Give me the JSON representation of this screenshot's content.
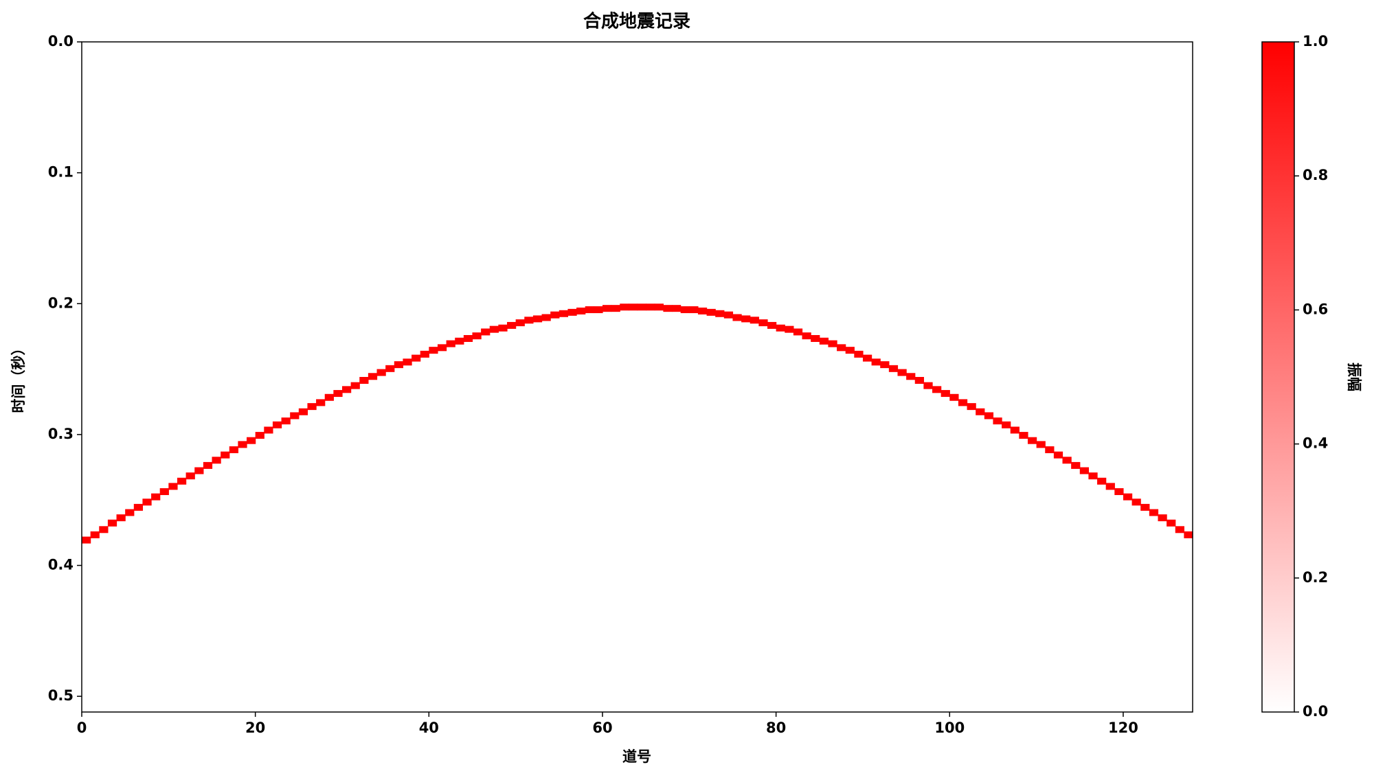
{
  "chart_data": {
    "type": "heatmap",
    "title": "合成地震记录",
    "xlabel": "道号",
    "ylabel": "时间（秒）",
    "colorbar_label": "振幅",
    "color": "#ff0000",
    "colormap": [
      "#ffffff",
      "#ff0000"
    ],
    "y_inverted": true,
    "xlim": [
      0,
      128
    ],
    "ylim": [
      0,
      0.512
    ],
    "xticks": [
      0,
      20,
      40,
      60,
      80,
      100,
      120
    ],
    "yticks": [
      {
        "value": 0,
        "label": "0.0"
      },
      0.1,
      0.2,
      0.3,
      0.4,
      0.5
    ],
    "clim": [
      0,
      1
    ],
    "cticks": [
      {
        "value": 0,
        "label": "0.0"
      },
      0.2,
      0.4,
      0.6,
      0.8,
      {
        "value": 1,
        "label": "1.0"
      }
    ],
    "x": [
      0,
      1,
      2,
      3,
      4,
      5,
      6,
      7,
      8,
      9,
      10,
      11,
      12,
      13,
      14,
      15,
      16,
      17,
      18,
      19,
      20,
      21,
      22,
      23,
      24,
      25,
      26,
      27,
      28,
      29,
      30,
      31,
      32,
      33,
      34,
      35,
      36,
      37,
      38,
      39,
      40,
      41,
      42,
      43,
      44,
      45,
      46,
      47,
      48,
      49,
      50,
      51,
      52,
      53,
      54,
      55,
      56,
      57,
      58,
      59,
      60,
      61,
      62,
      63,
      64,
      65,
      66,
      67,
      68,
      69,
      70,
      71,
      72,
      73,
      74,
      75,
      76,
      77,
      78,
      79,
      80,
      81,
      82,
      83,
      84,
      85,
      86,
      87,
      88,
      89,
      90,
      91,
      92,
      93,
      94,
      95,
      96,
      97,
      98,
      99,
      100,
      101,
      102,
      103,
      104,
      105,
      106,
      107,
      108,
      109,
      110,
      111,
      112,
      113,
      114,
      115,
      116,
      117,
      118,
      119,
      120,
      121,
      122,
      123,
      124,
      125,
      126,
      127
    ],
    "values": [
      0.378,
      0.374,
      0.37,
      0.365,
      0.361,
      0.357,
      0.353,
      0.349,
      0.345,
      0.341,
      0.337,
      0.333,
      0.329,
      0.325,
      0.321,
      0.317,
      0.313,
      0.309,
      0.305,
      0.302,
      0.298,
      0.294,
      0.29,
      0.287,
      0.283,
      0.28,
      0.276,
      0.273,
      0.269,
      0.266,
      0.263,
      0.26,
      0.256,
      0.253,
      0.25,
      0.247,
      0.244,
      0.242,
      0.239,
      0.236,
      0.233,
      0.231,
      0.228,
      0.226,
      0.224,
      0.222,
      0.219,
      0.217,
      0.216,
      0.214,
      0.212,
      0.21,
      0.209,
      0.208,
      0.206,
      0.205,
      0.204,
      0.203,
      0.202,
      0.202,
      0.201,
      0.201,
      0.2,
      0.2,
      0.2,
      0.2,
      0.2,
      0.201,
      0.201,
      0.202,
      0.202,
      0.203,
      0.204,
      0.205,
      0.206,
      0.208,
      0.209,
      0.21,
      0.212,
      0.214,
      0.216,
      0.217,
      0.219,
      0.222,
      0.224,
      0.226,
      0.228,
      0.231,
      0.233,
      0.236,
      0.239,
      0.242,
      0.244,
      0.247,
      0.25,
      0.253,
      0.256,
      0.26,
      0.263,
      0.266,
      0.269,
      0.273,
      0.276,
      0.28,
      0.283,
      0.287,
      0.29,
      0.294,
      0.298,
      0.302,
      0.305,
      0.309,
      0.313,
      0.317,
      0.321,
      0.325,
      0.329,
      0.333,
      0.337,
      0.341,
      0.345,
      0.349,
      0.353,
      0.357,
      0.361,
      0.365,
      0.37,
      0.374
    ]
  }
}
